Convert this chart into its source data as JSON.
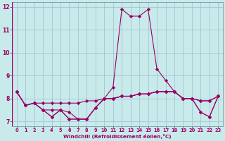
{
  "xlabel": "Windchill (Refroidissement éolien,°C)",
  "background_color": "#c8eaea",
  "grid_color": "#9bbfcf",
  "line_color": "#990066",
  "spine_color": "#7799aa",
  "x": [
    0,
    1,
    2,
    3,
    4,
    5,
    6,
    7,
    8,
    9,
    10,
    11,
    12,
    13,
    14,
    15,
    16,
    17,
    18,
    19,
    20,
    21,
    22,
    23
  ],
  "series1": [
    8.3,
    7.7,
    7.8,
    7.5,
    7.2,
    7.5,
    7.1,
    7.1,
    7.1,
    7.6,
    8.0,
    8.5,
    11.9,
    11.6,
    11.6,
    11.9,
    9.3,
    8.8,
    8.3,
    8.0,
    8.0,
    7.4,
    7.2,
    8.1
  ],
  "series2": [
    8.3,
    7.7,
    7.8,
    7.5,
    7.2,
    7.5,
    7.1,
    7.1,
    7.1,
    7.6,
    8.0,
    8.0,
    8.1,
    8.1,
    8.2,
    8.2,
    8.3,
    8.3,
    8.3,
    8.0,
    8.0,
    7.9,
    7.9,
    8.1
  ],
  "series3": [
    8.3,
    7.7,
    7.8,
    7.8,
    7.8,
    7.8,
    7.8,
    7.8,
    7.9,
    7.9,
    8.0,
    8.0,
    8.1,
    8.1,
    8.2,
    8.2,
    8.3,
    8.3,
    8.3,
    8.0,
    8.0,
    7.9,
    7.9,
    8.1
  ],
  "series4": [
    8.3,
    7.7,
    7.8,
    7.5,
    7.5,
    7.5,
    7.4,
    7.1,
    7.1,
    7.6,
    8.0,
    8.0,
    8.1,
    8.1,
    8.2,
    8.2,
    8.3,
    8.3,
    8.3,
    8.0,
    8.0,
    7.4,
    7.2,
    8.1
  ],
  "ylim": [
    6.8,
    12.2
  ],
  "yticks": [
    7,
    8,
    9,
    10,
    11,
    12
  ],
  "xticks": [
    0,
    1,
    2,
    3,
    4,
    5,
    6,
    7,
    8,
    9,
    10,
    11,
    12,
    13,
    14,
    15,
    16,
    17,
    18,
    19,
    20,
    21,
    22,
    23
  ],
  "xlim": [
    -0.5,
    23.5
  ]
}
